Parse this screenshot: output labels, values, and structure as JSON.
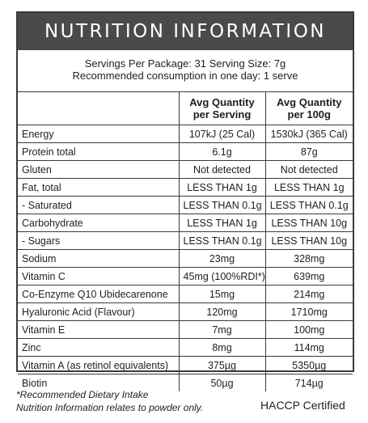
{
  "header": {
    "title": "NUTRITION INFORMATION"
  },
  "serving": {
    "line1": "Servings Per Package: 31  Serving Size: 7g",
    "line2": "Recommended consumption in one day: 1 serve"
  },
  "table": {
    "col_serving_line1": "Avg Quantity",
    "col_serving_line2": "per Serving",
    "col_100g_line1": "Avg Quantity",
    "col_100g_line2": "per 100g",
    "rows": [
      {
        "name": "Energy",
        "serving": "107kJ (25 Cal)",
        "per100": "1530kJ (365 Cal)"
      },
      {
        "name": "Protein total",
        "serving": "6.1g",
        "per100": "87g"
      },
      {
        "name": "Gluten",
        "serving": "Not detected",
        "per100": "Not detected"
      },
      {
        "name": "Fat, total",
        "serving": "LESS THAN 1g",
        "per100": "LESS THAN 1g"
      },
      {
        "name": "- Saturated",
        "serving": "LESS THAN 0.1g",
        "per100": "LESS THAN 0.1g"
      },
      {
        "name": "Carbohydrate",
        "serving": "LESS THAN 1g",
        "per100": "LESS THAN 10g"
      },
      {
        "name": "- Sugars",
        "serving": "LESS THAN 0.1g",
        "per100": "LESS THAN 10g"
      },
      {
        "name": "Sodium",
        "serving": "23mg",
        "per100": "328mg"
      },
      {
        "name": "Vitamin C",
        "serving": "45mg (100%RDI*)",
        "per100": "639mg"
      },
      {
        "name": "Co-Enzyme Q10 Ubidecarenone",
        "serving": "15mg",
        "per100": "214mg"
      },
      {
        "name": "Hyaluronic Acid (Flavour)",
        "serving": "120mg",
        "per100": "1710mg"
      },
      {
        "name": "Vitamin E",
        "serving": "7mg",
        "per100": "100mg"
      },
      {
        "name": "Zinc",
        "serving": "8mg",
        "per100": "114mg"
      },
      {
        "name": "Vitamin A  (as retinol equivalents)",
        "serving": "375µg",
        "per100": "5350µg"
      },
      {
        "name": "Biotin",
        "serving": "50µg",
        "per100": "714µg"
      }
    ]
  },
  "footnote": {
    "line1": "*Recommended Dietary Intake",
    "line2": "Nutrition Information relates to powder only."
  },
  "certification": "HACCP Certified"
}
